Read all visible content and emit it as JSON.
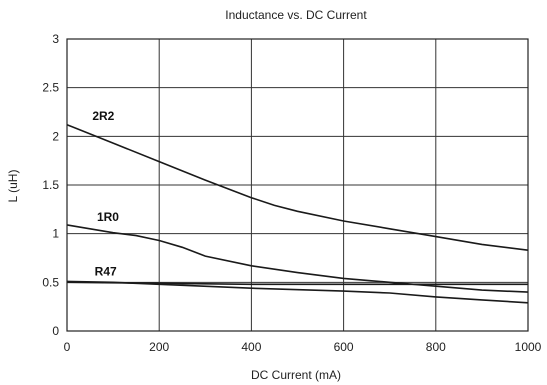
{
  "chart_data": {
    "type": "line",
    "title": "Inductance vs. DC Current",
    "xlabel": "DC Current (mA)",
    "ylabel": "L (uH)",
    "xlim": [
      0,
      1000
    ],
    "ylim": [
      0,
      3
    ],
    "x_ticks": [
      0,
      200,
      400,
      600,
      800,
      1000
    ],
    "y_ticks": [
      0,
      0.5,
      1,
      1.5,
      2,
      2.5,
      3
    ],
    "x_tick_labels": [
      "0",
      "200",
      "400",
      "600",
      "800",
      "1000"
    ],
    "y_tick_labels": [
      "0",
      "0.5",
      "1",
      "1.5",
      "2",
      "2.5",
      "3"
    ],
    "grid": true,
    "line_color": "#1a1a1a",
    "series": [
      {
        "name": "2R2",
        "x": [
          0,
          100,
          200,
          300,
          400,
          450,
          500,
          600,
          700,
          800,
          900,
          1000
        ],
        "y": [
          2.12,
          1.93,
          1.74,
          1.55,
          1.37,
          1.29,
          1.23,
          1.13,
          1.05,
          0.97,
          0.89,
          0.83
        ],
        "label_at": [
          55,
          2.17
        ]
      },
      {
        "name": "1R0",
        "x": [
          0,
          50,
          100,
          150,
          200,
          250,
          300,
          400,
          500,
          600,
          700,
          800,
          900,
          1000
        ],
        "y": [
          1.09,
          1.05,
          1.01,
          0.98,
          0.93,
          0.86,
          0.77,
          0.67,
          0.6,
          0.54,
          0.5,
          0.46,
          0.42,
          0.4
        ],
        "label_at": [
          65,
          1.13
        ]
      },
      {
        "name": "R47",
        "x": [
          0,
          200,
          400,
          600,
          700,
          800,
          900,
          1000
        ],
        "y": [
          0.5,
          0.49,
          0.48,
          0.48,
          0.48,
          0.48,
          0.48,
          0.48
        ],
        "label_at": [
          60,
          0.57
        ]
      },
      {
        "name": "",
        "x": [
          0,
          100,
          200,
          400,
          600,
          700,
          800,
          900,
          1000
        ],
        "y": [
          0.51,
          0.5,
          0.48,
          0.44,
          0.41,
          0.39,
          0.35,
          0.32,
          0.29
        ]
      }
    ]
  }
}
